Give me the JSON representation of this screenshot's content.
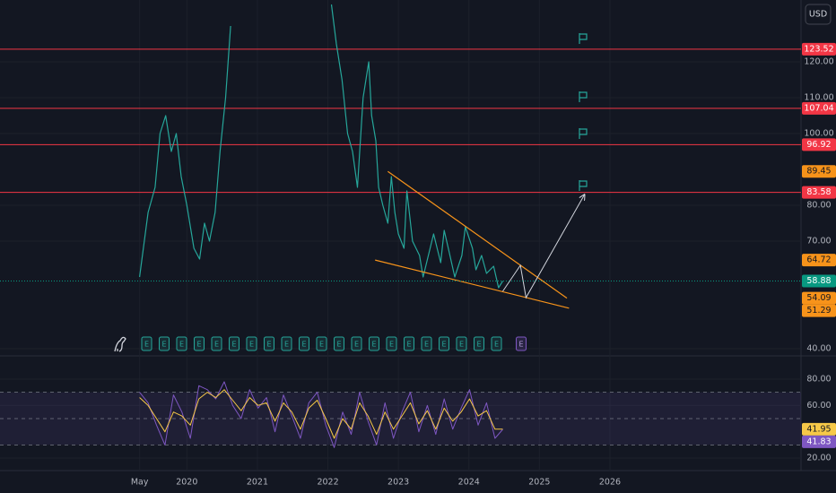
{
  "chart_data": [
    {
      "type": "line",
      "currency": "USD",
      "earnings_marker": "E",
      "xlim": [
        2017.35,
        2028.71
      ],
      "xticks": [
        {
          "value": 2019.33,
          "label": "May"
        },
        2020,
        2021,
        2022,
        2023,
        2024,
        2025,
        2026
      ],
      "ylim": [
        38.25,
        137.25
      ],
      "yticks": [
        {
          "value": 120,
          "label": "120.00"
        },
        {
          "value": 110,
          "label": "110.00"
        },
        {
          "value": 100,
          "label": "100.00"
        },
        {
          "value": 80,
          "label": "80.00"
        },
        {
          "value": 70,
          "label": "70.00"
        },
        {
          "value": 40,
          "label": "40.00"
        }
      ],
      "x": [
        2019.33,
        2019.45,
        2019.55,
        2019.62,
        2019.7,
        2019.78,
        2019.85,
        2019.92,
        2020.0,
        2020.1,
        2020.18,
        2020.25,
        2020.32,
        2020.4,
        2020.47,
        2020.55,
        2020.62,
        2020.7,
        2020.8,
        2021.0,
        2021.5,
        2021.9,
        2022.05,
        2022.12,
        2022.2,
        2022.28,
        2022.35,
        2022.42,
        2022.5,
        2022.58,
        2022.62,
        2022.68,
        2022.72,
        2022.78,
        2022.85,
        2022.9,
        2022.95,
        2023.0,
        2023.08,
        2023.12,
        2023.2,
        2023.3,
        2023.35,
        2023.45,
        2023.5,
        2023.6,
        2023.65,
        2023.72,
        2023.8,
        2023.9,
        2023.95,
        2024.05,
        2024.1,
        2024.18,
        2024.25,
        2024.35,
        2024.42,
        2024.48
      ],
      "series": [
        {
          "color": "#26a69a",
          "values": [
            60,
            78,
            85,
            100,
            105,
            95,
            100,
            88,
            80,
            68,
            65,
            75,
            70,
            78,
            95,
            110,
            130,
            null,
            null,
            null,
            null,
            null,
            136,
            125,
            115,
            100,
            95,
            85,
            110,
            120,
            105,
            98,
            85,
            80,
            75,
            88,
            78,
            72,
            68,
            84,
            70,
            66,
            60,
            68,
            72,
            64,
            73,
            67,
            60,
            66,
            74,
            68,
            62,
            66,
            61,
            63,
            57,
            58.88
          ]
        }
      ],
      "last_price_color": "#089981",
      "horizontal_lines": [
        {
          "value": 123.52,
          "color": "#f23645"
        },
        {
          "value": 107.04,
          "color": "#f23645"
        },
        {
          "value": 96.92,
          "color": "#f23645"
        },
        {
          "value": 83.58,
          "color": "#f23645"
        }
      ],
      "trendlines": [
        {
          "color": "#f7931a",
          "x": [
            2022.85,
            2025.39
          ],
          "values": [
            89.45,
            54.09
          ]
        },
        {
          "color": "#f7931a",
          "x": [
            2022.67,
            2025.42
          ],
          "values": [
            64.72,
            51.29
          ]
        }
      ],
      "projection": {
        "color": "#d1d4dc",
        "x": [
          2024.48,
          2024.73,
          2024.81,
          2025.64
        ],
        "values": [
          56,
          63.25,
          54.25,
          83
        ]
      }
    },
    {
      "type": "line",
      "xlim": [
        2017.35,
        2028.71
      ],
      "ylim": [
        10.5,
        97
      ],
      "yticks": [
        {
          "value": 80,
          "label": "80.00"
        },
        {
          "value": 60,
          "label": "60.00"
        },
        {
          "value": 20,
          "label": "20.00"
        }
      ],
      "bands": [
        70,
        50,
        30
      ],
      "x": [
        2019.33,
        2019.45,
        2019.57,
        2019.69,
        2019.81,
        2019.93,
        2020.05,
        2020.17,
        2020.29,
        2020.41,
        2020.53,
        2020.65,
        2020.77,
        2020.89,
        2021.01,
        2021.13,
        2021.25,
        2021.37,
        2021.49,
        2021.61,
        2021.73,
        2021.85,
        2021.97,
        2022.09,
        2022.21,
        2022.33,
        2022.45,
        2022.57,
        2022.69,
        2022.81,
        2022.93,
        2023.05,
        2023.17,
        2023.29,
        2023.41,
        2023.53,
        2023.65,
        2023.77,
        2023.89,
        2024.01,
        2024.13,
        2024.25,
        2024.37,
        2024.48
      ],
      "series": [
        {
          "color": "#7e57c2",
          "values": [
            70,
            62,
            45,
            30,
            68,
            55,
            35,
            75,
            72,
            65,
            78,
            60,
            50,
            72,
            58,
            66,
            40,
            68,
            52,
            35,
            62,
            70,
            45,
            28,
            55,
            38,
            70,
            48,
            30,
            62,
            35,
            55,
            70,
            40,
            60,
            38,
            65,
            42,
            58,
            72,
            45,
            62,
            35,
            41.83
          ]
        },
        {
          "color": "#f7c948",
          "values": [
            66,
            60,
            50,
            40,
            55,
            52,
            45,
            65,
            70,
            66,
            72,
            64,
            56,
            66,
            60,
            62,
            48,
            62,
            55,
            42,
            58,
            64,
            50,
            35,
            50,
            42,
            62,
            52,
            38,
            55,
            42,
            52,
            62,
            46,
            56,
            42,
            58,
            48,
            55,
            65,
            52,
            56,
            42,
            41.95
          ]
        }
      ]
    }
  ]
}
